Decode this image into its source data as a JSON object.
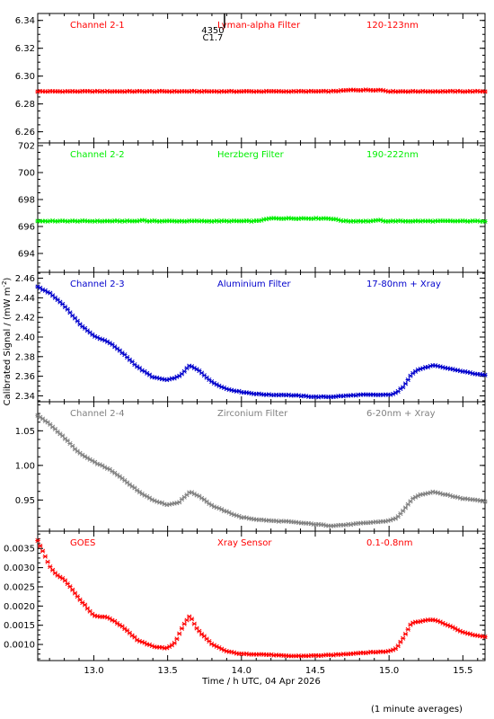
{
  "chart_data": {
    "type": "scatter",
    "xlabel": "Time / h UTC, 04 Apr 2026",
    "ylabel": "Calibrated Signal / (mW m",
    "ylabel_sup": "-2",
    "ylabel_close": ")",
    "footnote": "(1 minute averages)",
    "xlim": [
      12.62,
      15.65
    ],
    "xticks": [
      13.0,
      13.5,
      14.0,
      14.5,
      15.0,
      15.5
    ],
    "xtick_labels": [
      "13.0",
      "13.5",
      "14.0",
      "14.5",
      "15.0",
      "15.5"
    ],
    "flare_marker": {
      "time": "4350",
      "class": "C1.7",
      "x": 13.8
    },
    "panels": [
      {
        "channel": "Channel 2-1",
        "filter": "Lyman-alpha Filter",
        "band": "120-123nm",
        "color": "#ff0000",
        "ylim": [
          6.252,
          6.345
        ],
        "yticks": [
          6.26,
          6.28,
          6.3,
          6.32,
          6.34
        ],
        "ytick_labels": [
          "6.26",
          "6.28",
          "6.30",
          "6.32",
          "6.34"
        ],
        "x": [
          12.62,
          13.0,
          14.0,
          14.6,
          14.75,
          14.95,
          15.0,
          15.65
        ],
        "y": [
          6.289,
          6.289,
          6.289,
          6.289,
          6.29,
          6.29,
          6.289,
          6.289
        ]
      },
      {
        "channel": "Channel 2-2",
        "filter": "Herzberg Filter",
        "band": "190-222nm",
        "color": "#00ee00",
        "ylim": [
          692.6,
          702.2
        ],
        "yticks": [
          694,
          696,
          698,
          700,
          702
        ],
        "ytick_labels": [
          "694",
          "696",
          "698",
          "700",
          "702"
        ],
        "x": [
          12.62,
          13.3,
          13.33,
          13.36,
          14.1,
          14.2,
          14.6,
          14.7,
          14.9,
          14.93,
          14.96,
          15.65
        ],
        "y": [
          696.4,
          696.4,
          696.5,
          696.4,
          696.4,
          696.6,
          696.6,
          696.4,
          696.4,
          696.5,
          696.4,
          696.4
        ]
      },
      {
        "channel": "Channel 2-3",
        "filter": "Aluminium Filter",
        "band": "17-80nm + Xray",
        "color": "#0000cc",
        "ylim": [
          2.334,
          2.466
        ],
        "yticks": [
          2.34,
          2.36,
          2.38,
          2.4,
          2.42,
          2.44,
          2.46
        ],
        "ytick_labels": [
          "2.34",
          "2.36",
          "2.38",
          "2.40",
          "2.42",
          "2.44",
          "2.46"
        ],
        "x": [
          12.62,
          12.7,
          12.8,
          12.9,
          13.0,
          13.1,
          13.2,
          13.3,
          13.4,
          13.5,
          13.58,
          13.65,
          13.72,
          13.8,
          13.9,
          14.0,
          14.1,
          14.2,
          14.3,
          14.4,
          14.5,
          14.6,
          14.7,
          14.8,
          14.9,
          15.0,
          15.05,
          15.1,
          15.15,
          15.2,
          15.3,
          15.4,
          15.5,
          15.6,
          15.65
        ],
        "y": [
          2.451,
          2.445,
          2.432,
          2.414,
          2.401,
          2.395,
          2.383,
          2.369,
          2.359,
          2.356,
          2.36,
          2.371,
          2.365,
          2.354,
          2.347,
          2.344,
          2.342,
          2.341,
          2.341,
          2.34,
          2.339,
          2.339,
          2.34,
          2.341,
          2.341,
          2.341,
          2.343,
          2.35,
          2.362,
          2.367,
          2.371,
          2.368,
          2.365,
          2.362,
          2.361
        ]
      },
      {
        "channel": "Channel 2-4",
        "filter": "Zirconium Filter",
        "band": "6-20nm + Xray",
        "color": "#808080",
        "ylim": [
          0.905,
          1.092
        ],
        "yticks": [
          0.95,
          1.0,
          1.05
        ],
        "ytick_labels": [
          "0.95",
          "1.00",
          "1.05"
        ],
        "x": [
          12.62,
          12.7,
          12.8,
          12.9,
          13.0,
          13.1,
          13.2,
          13.3,
          13.4,
          13.5,
          13.58,
          13.65,
          13.72,
          13.8,
          13.9,
          14.0,
          14.1,
          14.2,
          14.3,
          14.4,
          14.5,
          14.6,
          14.7,
          14.8,
          14.9,
          15.0,
          15.05,
          15.1,
          15.15,
          15.2,
          15.3,
          15.4,
          15.5,
          15.6,
          15.65
        ],
        "y": [
          1.072,
          1.06,
          1.04,
          1.018,
          1.005,
          0.995,
          0.98,
          0.963,
          0.95,
          0.943,
          0.947,
          0.962,
          0.955,
          0.942,
          0.933,
          0.925,
          0.922,
          0.92,
          0.919,
          0.917,
          0.915,
          0.913,
          0.914,
          0.916,
          0.918,
          0.92,
          0.924,
          0.935,
          0.95,
          0.957,
          0.962,
          0.957,
          0.952,
          0.95,
          0.948
        ]
      },
      {
        "channel": "GOES",
        "filter": "Xray Sensor",
        "band": "0.1-0.8nm",
        "color": "#ff0000",
        "ylim": [
          0.00058,
          0.00395
        ],
        "yticks": [
          0.001,
          0.0015,
          0.002,
          0.0025,
          0.003,
          0.0035
        ],
        "ytick_labels": [
          "0.0010",
          "0.0015",
          "0.0020",
          "0.0025",
          "0.0030",
          "0.0035"
        ],
        "x": [
          12.62,
          12.7,
          12.75,
          12.8,
          12.9,
          13.0,
          13.1,
          13.2,
          13.3,
          13.4,
          13.5,
          13.55,
          13.6,
          13.65,
          13.7,
          13.8,
          13.9,
          14.0,
          14.1,
          14.2,
          14.3,
          14.4,
          14.5,
          14.6,
          14.7,
          14.8,
          14.9,
          15.0,
          15.05,
          15.1,
          15.15,
          15.2,
          15.3,
          15.4,
          15.5,
          15.6,
          15.65
        ],
        "y": [
          0.0037,
          0.00305,
          0.0028,
          0.0027,
          0.0022,
          0.00175,
          0.0017,
          0.00145,
          0.0011,
          0.00095,
          0.0009,
          0.00105,
          0.00145,
          0.00175,
          0.0014,
          0.001,
          0.00082,
          0.00075,
          0.00075,
          0.00073,
          0.0007,
          0.0007,
          0.00071,
          0.00072,
          0.00075,
          0.00078,
          0.0008,
          0.00082,
          0.0009,
          0.0012,
          0.00155,
          0.0016,
          0.00165,
          0.0015,
          0.00132,
          0.00122,
          0.0012
        ]
      }
    ]
  }
}
